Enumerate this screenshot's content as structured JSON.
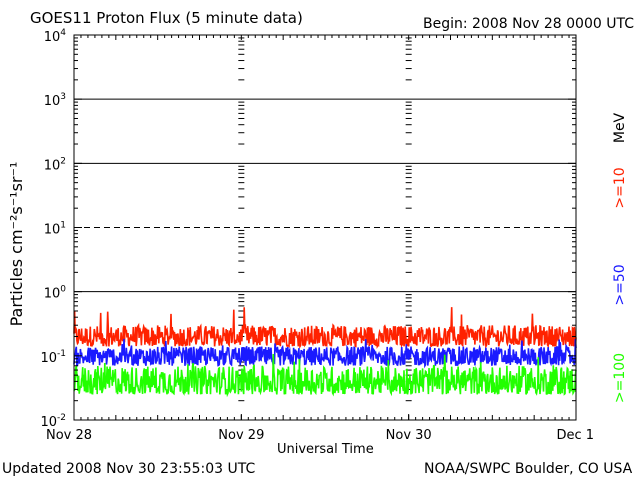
{
  "header": {
    "title": "GOES11 Proton Flux (5 minute data)",
    "begin": "Begin: 2008 Nov 28 0000 UTC"
  },
  "footer": {
    "updated": "Updated 2008 Nov 30 23:55:03 UTC",
    "source": "NOAA/SWPC Boulder, CO USA"
  },
  "chart_data": {
    "type": "line",
    "xlabel": "Universal Time",
    "ylabel": "Particles cm⁻²s⁻¹sr⁻¹",
    "x_ticks": [
      "Nov 28",
      "Nov 29",
      "Nov 30",
      "Dec 1"
    ],
    "x_range_days": [
      0,
      3
    ],
    "y_scale": "log",
    "ylim": [
      0.01,
      10000
    ],
    "y_ticks": [
      {
        "value": 0.01,
        "base": "10",
        "exp": "-2"
      },
      {
        "value": 0.1,
        "base": "10",
        "exp": "-1"
      },
      {
        "value": 1,
        "base": "10",
        "exp": "0"
      },
      {
        "value": 10,
        "base": "10",
        "exp": "1"
      },
      {
        "value": 100,
        "base": "10",
        "exp": "2"
      },
      {
        "value": 1000,
        "base": "10",
        "exp": "3"
      },
      {
        "value": 10000,
        "base": "10",
        "exp": "4"
      }
    ],
    "reference_lines": [
      {
        "value": 10,
        "style": "dashed"
      },
      {
        "value": 100,
        "style": "solid"
      },
      {
        "value": 1000,
        "style": "solid"
      },
      {
        "value": 1,
        "style": "solid"
      }
    ],
    "legend_unit": "MeV",
    "series": [
      {
        "name": ">=10",
        "color": "#ff2200",
        "typical_low": 0.14,
        "typical_high": 0.3,
        "peak": 0.58
      },
      {
        "name": ">=50",
        "color": "#1a1aff",
        "typical_low": 0.07,
        "typical_high": 0.14,
        "peak": 0.19
      },
      {
        "name": ">=100",
        "color": "#22ff00",
        "typical_low": 0.025,
        "typical_high": 0.07,
        "peak": 0.11
      }
    ],
    "grid": "vertical day separators with minor tick marks"
  }
}
